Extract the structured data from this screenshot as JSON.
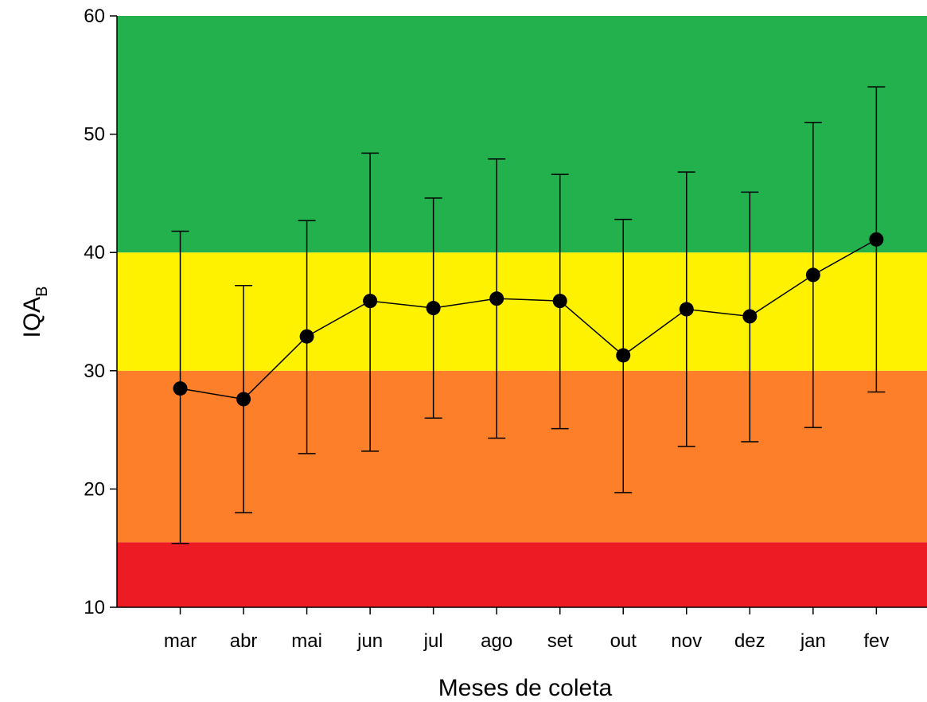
{
  "chart_data": {
    "type": "line",
    "xlabel": "Meses de coleta",
    "ylabel": {
      "main": "IQA",
      "sub": "B"
    },
    "ylim": [
      10,
      60
    ],
    "yticks": [
      10,
      20,
      30,
      40,
      50,
      60
    ],
    "categories": [
      "mar",
      "abr",
      "mai",
      "jun",
      "jul",
      "ago",
      "set",
      "out",
      "nov",
      "dez",
      "jan",
      "fev"
    ],
    "series": [
      {
        "values": [
          28.5,
          27.6,
          32.9,
          35.9,
          35.3,
          36.1,
          35.9,
          31.3,
          35.2,
          34.6,
          38.1,
          41.1
        ],
        "error_lower": [
          15.4,
          18.0,
          23.0,
          23.2,
          26.0,
          24.3,
          25.1,
          19.7,
          23.6,
          24.0,
          25.2,
          28.2
        ],
        "error_upper": [
          41.8,
          37.2,
          42.7,
          48.4,
          44.6,
          47.9,
          46.6,
          42.8,
          46.8,
          45.1,
          51.0,
          54.0
        ],
        "line_color": "#000000",
        "marker_color": "#000000"
      }
    ],
    "bands": [
      {
        "from": 10,
        "to": 15.5,
        "color": "#ed1c24"
      },
      {
        "from": 15.5,
        "to": 30,
        "color": "#fd7f2a"
      },
      {
        "from": 30,
        "to": 40,
        "color": "#fff200"
      },
      {
        "from": 40,
        "to": 60,
        "color": "#22b14c"
      }
    ],
    "grid": false,
    "legend": "none"
  }
}
